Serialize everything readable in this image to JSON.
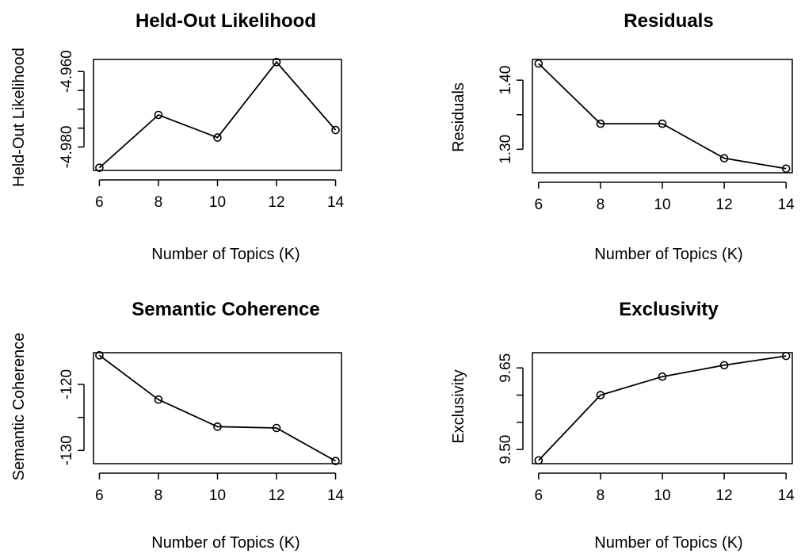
{
  "chart_data": [
    {
      "type": "line",
      "title": "Held-Out Likelihood",
      "xlabel": "Number of Topics (K)",
      "ylabel": "Held-Out Likelihood",
      "x": [
        6,
        8,
        10,
        12,
        14
      ],
      "y": [
        -4.9855,
        -4.9715,
        -4.9775,
        -4.9575,
        -4.9755
      ],
      "xticks": [
        6,
        8,
        10,
        12,
        14
      ],
      "yticks": [
        -4.96,
        -4.965,
        -4.97,
        -4.975,
        -4.98
      ],
      "ytick_labels": [
        "-4.960",
        "",
        "",
        "",
        "-4.980"
      ],
      "xlim": [
        5.8,
        14.2
      ],
      "ylim": [
        -4.9862,
        -4.9568
      ],
      "marker": "open-circle"
    },
    {
      "type": "line",
      "title": "Residuals",
      "xlabel": "Number of Topics (K)",
      "ylabel": "Residuals",
      "x": [
        6,
        8,
        10,
        12,
        14
      ],
      "y": [
        1.424,
        1.337,
        1.337,
        1.287,
        1.272
      ],
      "xticks": [
        6,
        8,
        10,
        12,
        14
      ],
      "yticks": [
        1.3,
        1.35,
        1.4
      ],
      "ytick_labels": [
        "1.30",
        "",
        "1.40"
      ],
      "xlim": [
        5.8,
        14.2
      ],
      "ylim": [
        1.266,
        1.43
      ],
      "marker": "open-circle"
    },
    {
      "type": "line",
      "title": "Semantic Coherence",
      "xlabel": "Number of Topics (K)",
      "ylabel": "Semantic Coherence",
      "x": [
        6,
        8,
        10,
        12,
        14
      ],
      "y": [
        -115.6,
        -122.3,
        -126.4,
        -126.6,
        -131.6
      ],
      "xticks": [
        6,
        8,
        10,
        12,
        14
      ],
      "yticks": [
        -120,
        -125,
        -130
      ],
      "ytick_labels": [
        "-120",
        "",
        "-130"
      ],
      "xlim": [
        5.8,
        14.2
      ],
      "ylim": [
        -132.0,
        -115.2
      ],
      "marker": "open-circle"
    },
    {
      "type": "line",
      "title": "Exclusivity",
      "xlabel": "Number of Topics (K)",
      "ylabel": "Exclusivity",
      "x": [
        6,
        8,
        10,
        12,
        14
      ],
      "y": [
        9.48,
        9.6,
        9.634,
        9.655,
        9.672
      ],
      "xticks": [
        6,
        8,
        10,
        12,
        14
      ],
      "yticks": [
        9.5,
        9.55,
        9.6,
        9.65
      ],
      "ytick_labels": [
        "9.50",
        "",
        "",
        "9.65"
      ],
      "xlim": [
        5.8,
        14.2
      ],
      "ylim": [
        9.474,
        9.678
      ],
      "marker": "open-circle"
    }
  ]
}
